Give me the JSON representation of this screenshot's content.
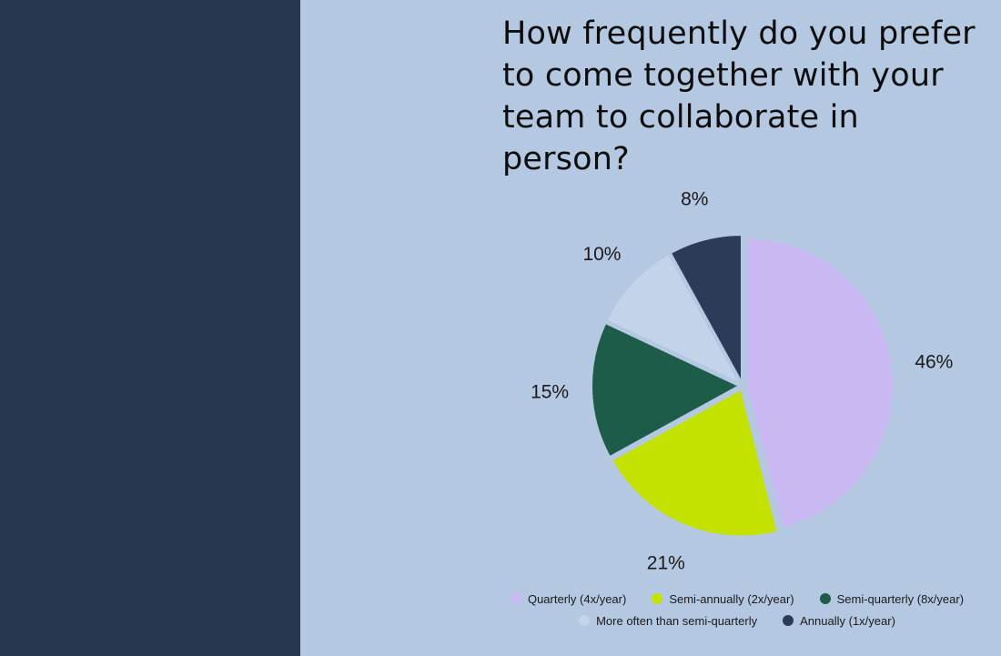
{
  "chart_data": {
    "type": "pie",
    "title": "How frequently do you prefer to come together with your team to collaborate in person?",
    "slices": [
      {
        "name": "Quarterly (4x/year)",
        "value": 46,
        "label": "46%",
        "color": "#cab8f2"
      },
      {
        "name": "Semi-annually (2x/year)",
        "value": 21,
        "label": "21%",
        "color": "#c4e202"
      },
      {
        "name": "Semi-quarterly (8x/year)",
        "value": 15,
        "label": "15%",
        "color": "#1c5c48"
      },
      {
        "name": "More often than semi-quarterly",
        "value": 10,
        "label": "10%",
        "color": "#c3d3ea"
      },
      {
        "name": "Annually (1x/year)",
        "value": 8,
        "label": "8%",
        "color": "#2c3b58"
      }
    ],
    "legend_position": "bottom",
    "legend_rows": [
      [
        0,
        1,
        2
      ],
      [
        3,
        4
      ]
    ]
  },
  "colors": {
    "background": "#b4c8e2",
    "left_panel": "#283750"
  }
}
